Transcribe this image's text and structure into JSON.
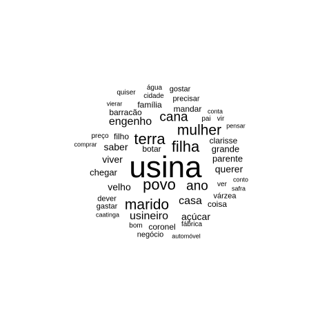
{
  "words": [
    {
      "text": "usina",
      "weight": 1.0
    },
    {
      "text": "mulher",
      "weight": 0.42
    },
    {
      "text": "terra",
      "weight": 0.42
    },
    {
      "text": "filha",
      "weight": 0.42
    },
    {
      "text": "povo",
      "weight": 0.42
    },
    {
      "text": "marido",
      "weight": 0.42
    },
    {
      "text": "cana",
      "weight": 0.36
    },
    {
      "text": "ano",
      "weight": 0.36
    },
    {
      "text": "engenho",
      "weight": 0.3
    },
    {
      "text": "casa",
      "weight": 0.3
    },
    {
      "text": "usineiro",
      "weight": 0.3
    },
    {
      "text": "açúcar",
      "weight": 0.26
    },
    {
      "text": "saber",
      "weight": 0.22
    },
    {
      "text": "viver",
      "weight": 0.22
    },
    {
      "text": "querer",
      "weight": 0.22
    },
    {
      "text": "velho",
      "weight": 0.22
    },
    {
      "text": "chegar",
      "weight": 0.2
    },
    {
      "text": "parente",
      "weight": 0.2
    },
    {
      "text": "grande",
      "weight": 0.2
    },
    {
      "text": "mandar",
      "weight": 0.18
    },
    {
      "text": "barracão",
      "weight": 0.18
    },
    {
      "text": "família",
      "weight": 0.18
    },
    {
      "text": "clarisse",
      "weight": 0.18
    },
    {
      "text": "filho",
      "weight": 0.18
    },
    {
      "text": "botar",
      "weight": 0.18
    },
    {
      "text": "coronel",
      "weight": 0.18
    },
    {
      "text": "coisa",
      "weight": 0.16
    },
    {
      "text": "várzea",
      "weight": 0.16
    },
    {
      "text": "negócio",
      "weight": 0.15
    },
    {
      "text": "precisar",
      "weight": 0.14
    },
    {
      "text": "gostar",
      "weight": 0.14
    },
    {
      "text": "dever",
      "weight": 0.14
    },
    {
      "text": "gastar",
      "weight": 0.14
    },
    {
      "text": "bom",
      "weight": 0.13
    },
    {
      "text": "fábrica",
      "weight": 0.13
    },
    {
      "text": "quiser",
      "weight": 0.12
    },
    {
      "text": "cidade",
      "weight": 0.12
    },
    {
      "text": "água",
      "weight": 0.12
    },
    {
      "text": "vierar",
      "weight": 0.12
    },
    {
      "text": "conta",
      "weight": 0.12
    },
    {
      "text": "pai",
      "weight": 0.13
    },
    {
      "text": "vir",
      "weight": 0.13
    },
    {
      "text": "pensar",
      "weight": 0.12
    },
    {
      "text": "preço",
      "weight": 0.12
    },
    {
      "text": "comprar",
      "weight": 0.12
    },
    {
      "text": "ver",
      "weight": 0.13
    },
    {
      "text": "conto",
      "weight": 0.12
    },
    {
      "text": "safra",
      "weight": 0.12
    },
    {
      "text": "caatinga",
      "weight": 0.12
    },
    {
      "text": "automóvel",
      "weight": 0.12
    }
  ]
}
